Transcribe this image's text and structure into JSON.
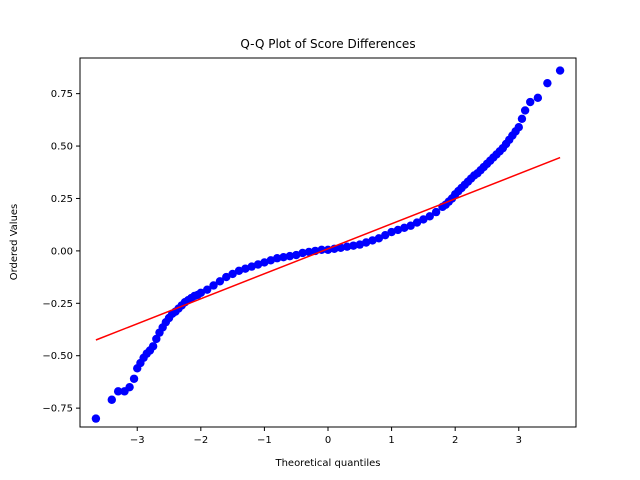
{
  "chart_data": {
    "type": "scatter",
    "title": "Q-Q Plot of Score Differences",
    "xlabel": "Theoretical quantiles",
    "ylabel": "Ordered Values",
    "xlim": [
      -3.9,
      3.9
    ],
    "ylim": [
      -0.84,
      0.92
    ],
    "xticks": [
      -3,
      -2,
      -1,
      0,
      1,
      2,
      3
    ],
    "xtick_labels": [
      "−3",
      "−2",
      "−1",
      "0",
      "1",
      "2",
      "3"
    ],
    "yticks": [
      -0.75,
      -0.5,
      -0.25,
      0.0,
      0.25,
      0.5,
      0.75
    ],
    "ytick_labels": [
      "−0.75",
      "−0.50",
      "−0.25",
      "0.00",
      "0.25",
      "0.50",
      "0.75"
    ],
    "grid": false,
    "colors": {
      "points": "#0000ff",
      "fit_line": "#ff0000"
    },
    "fit_line": {
      "x": [
        -3.65,
        3.65
      ],
      "y": [
        -0.425,
        0.445
      ]
    },
    "series": [
      {
        "x": [
          -3.65,
          -3.4,
          -3.3,
          -3.2,
          -3.12,
          -3.05,
          -3.0,
          -2.95,
          -2.9,
          -2.85,
          -2.8,
          -2.75,
          -2.7,
          -2.65,
          -2.6,
          -2.55,
          -2.5,
          -2.45,
          -2.4,
          -2.35,
          -2.3,
          -2.25,
          -2.2,
          -2.15,
          -2.1,
          -2.05,
          -2.0,
          -1.9,
          -1.8,
          -1.7,
          -1.6,
          -1.5,
          -1.4,
          -1.3,
          -1.2,
          -1.1,
          -1.0,
          -0.9,
          -0.8,
          -0.7,
          -0.6,
          -0.5,
          -0.4,
          -0.3,
          -0.2,
          -0.1,
          0.0,
          0.1,
          0.2,
          0.3,
          0.4,
          0.5,
          0.6,
          0.7,
          0.8,
          0.9,
          1.0,
          1.1,
          1.2,
          1.3,
          1.4,
          1.5,
          1.6,
          1.7,
          1.8,
          1.85,
          1.9,
          1.95,
          2.0,
          2.05,
          2.1,
          2.15,
          2.2,
          2.25,
          2.3,
          2.35,
          2.4,
          2.45,
          2.5,
          2.55,
          2.6,
          2.65,
          2.7,
          2.75,
          2.8,
          2.85,
          2.9,
          2.95,
          3.0,
          3.05,
          3.1,
          3.18,
          3.3,
          3.45,
          3.65
        ],
        "y": [
          -0.8,
          -0.71,
          -0.67,
          -0.67,
          -0.65,
          -0.61,
          -0.56,
          -0.535,
          -0.51,
          -0.49,
          -0.475,
          -0.455,
          -0.42,
          -0.39,
          -0.365,
          -0.34,
          -0.32,
          -0.3,
          -0.29,
          -0.275,
          -0.26,
          -0.245,
          -0.235,
          -0.225,
          -0.215,
          -0.21,
          -0.2,
          -0.185,
          -0.165,
          -0.145,
          -0.125,
          -0.11,
          -0.095,
          -0.085,
          -0.075,
          -0.065,
          -0.055,
          -0.045,
          -0.035,
          -0.03,
          -0.025,
          -0.02,
          -0.01,
          -0.005,
          0.0,
          0.005,
          0.005,
          0.01,
          0.015,
          0.02,
          0.025,
          0.03,
          0.04,
          0.05,
          0.06,
          0.075,
          0.09,
          0.1,
          0.11,
          0.12,
          0.135,
          0.15,
          0.165,
          0.185,
          0.21,
          0.22,
          0.235,
          0.25,
          0.27,
          0.285,
          0.3,
          0.315,
          0.33,
          0.345,
          0.36,
          0.37,
          0.385,
          0.4,
          0.415,
          0.43,
          0.445,
          0.46,
          0.475,
          0.49,
          0.51,
          0.53,
          0.55,
          0.57,
          0.59,
          0.63,
          0.67,
          0.71,
          0.73,
          0.8,
          0.86
        ]
      }
    ]
  }
}
